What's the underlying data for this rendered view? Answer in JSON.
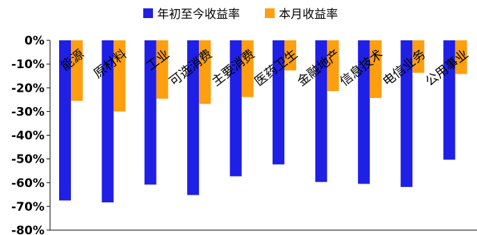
{
  "chart_data": {
    "type": "bar",
    "categories": [
      "能源",
      "原材料",
      "工业",
      "可选消费",
      "主要消费",
      "医药卫生",
      "金融地产",
      "信息技术",
      "电信业务",
      "公用事业"
    ],
    "series": [
      {
        "name": "年初至今收益率",
        "color": "#1f1fe6",
        "values": [
          -67.5,
          -68.3,
          -60.8,
          -65.2,
          -57.3,
          -52.3,
          -59.7,
          -60.5,
          -61.8,
          -50.3
        ]
      },
      {
        "name": "本月收益率",
        "color": "#ff9f0f",
        "values": [
          -25.5,
          -30.0,
          -24.6,
          -26.8,
          -23.9,
          -12.7,
          -21.4,
          -24.3,
          -13.7,
          -14.2
        ]
      }
    ],
    "ylim": [
      -80,
      0
    ],
    "yticks": [
      "0%",
      "-10%",
      "-20%",
      "-30%",
      "-40%",
      "-50%",
      "-60%",
      "-70%",
      "-80%"
    ],
    "legend_position": "top-center",
    "grid": false
  }
}
